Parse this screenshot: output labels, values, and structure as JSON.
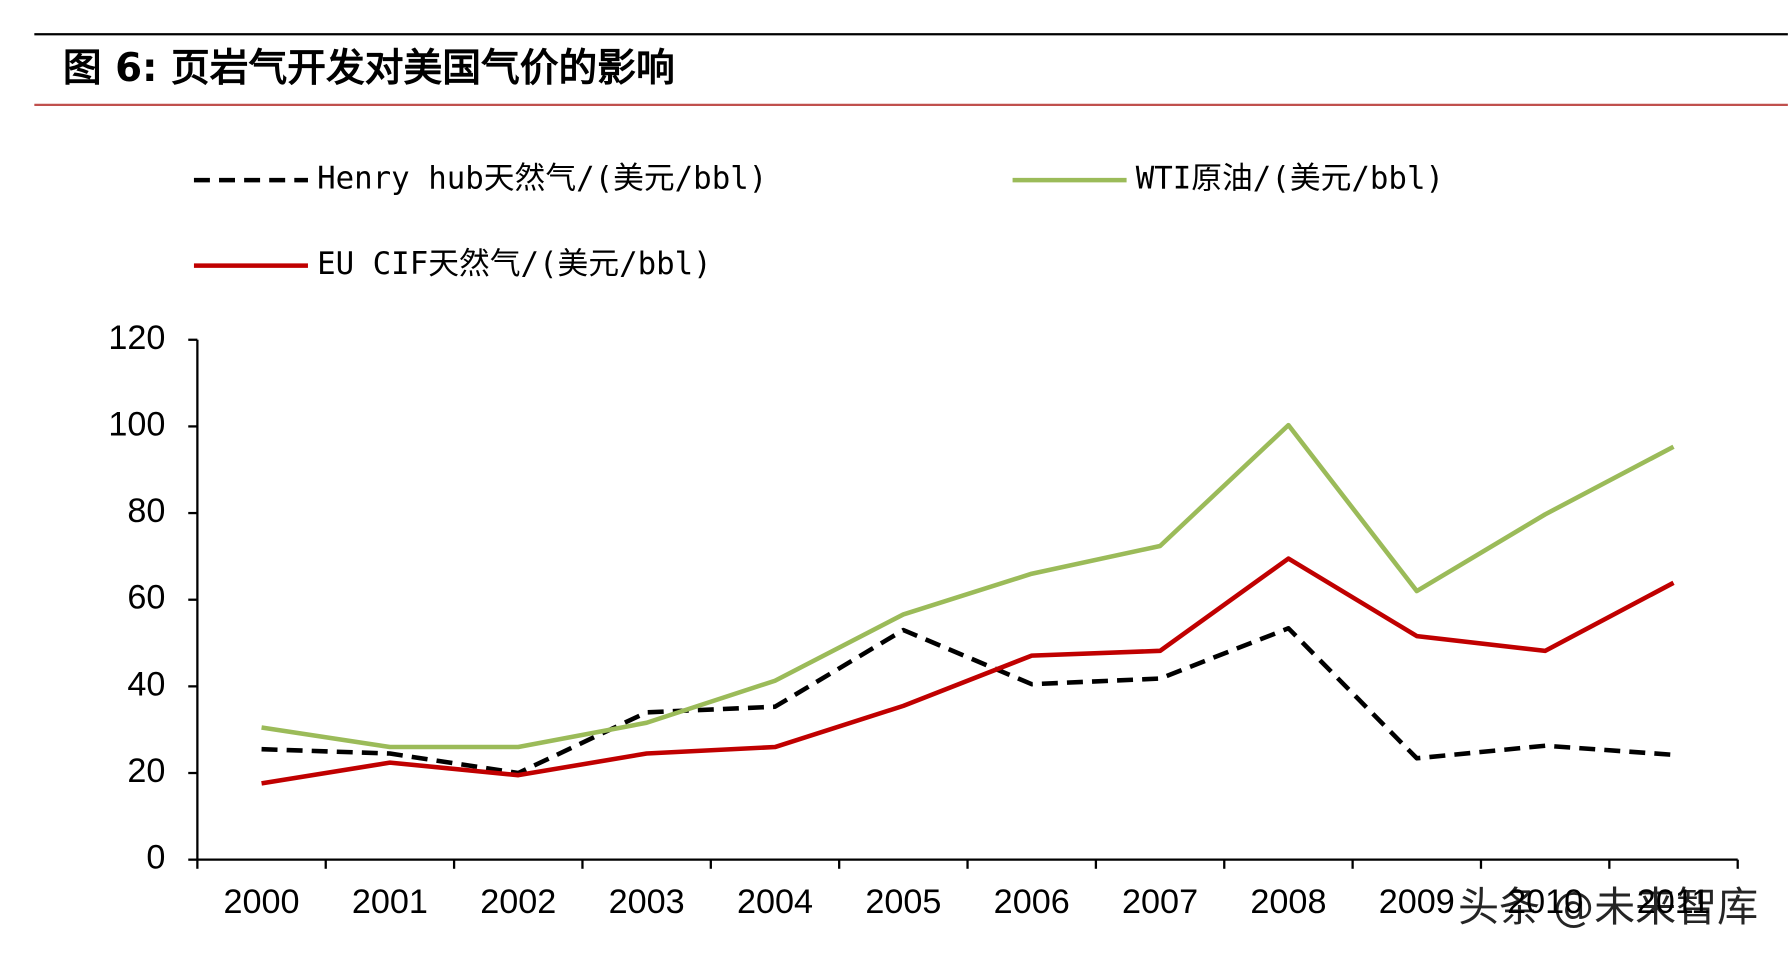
{
  "chart_data": {
    "type": "line",
    "title": "图 6: 页岩气开发对美国气价的影响",
    "categories": [
      "2000",
      "2001",
      "2002",
      "2003",
      "2004",
      "2005",
      "2006",
      "2007",
      "2008",
      "2009",
      "2010",
      "2011"
    ],
    "series": [
      {
        "name": "Henry hub天然气/(美元/bbl)",
        "color": "#000000",
        "style": "dashed",
        "values": [
          25.5,
          24.5,
          20,
          34,
          35.3,
          53,
          40.5,
          41.8,
          53.4,
          23.4,
          26.3,
          24.2
        ]
      },
      {
        "name": "WTI原油/(美元/bbl)",
        "color": "#9bbb59",
        "style": "solid",
        "values": [
          30.5,
          26,
          26,
          31.6,
          41.3,
          56.6,
          66,
          72.4,
          100.3,
          62,
          79.7,
          95.3
        ]
      },
      {
        "name": "EU CIF天然气/(美元/bbl)",
        "color": "#c00000",
        "style": "solid",
        "values": [
          17.6,
          22.4,
          19.5,
          24.5,
          26,
          35.5,
          47.1,
          48.2,
          69.5,
          51.6,
          48.2,
          63.9
        ]
      }
    ],
    "ylim": [
      0,
      120
    ],
    "yticks": [
      0,
      20,
      40,
      60,
      80,
      100,
      120
    ],
    "grid": false,
    "watermark": "头条 @未来智库"
  }
}
